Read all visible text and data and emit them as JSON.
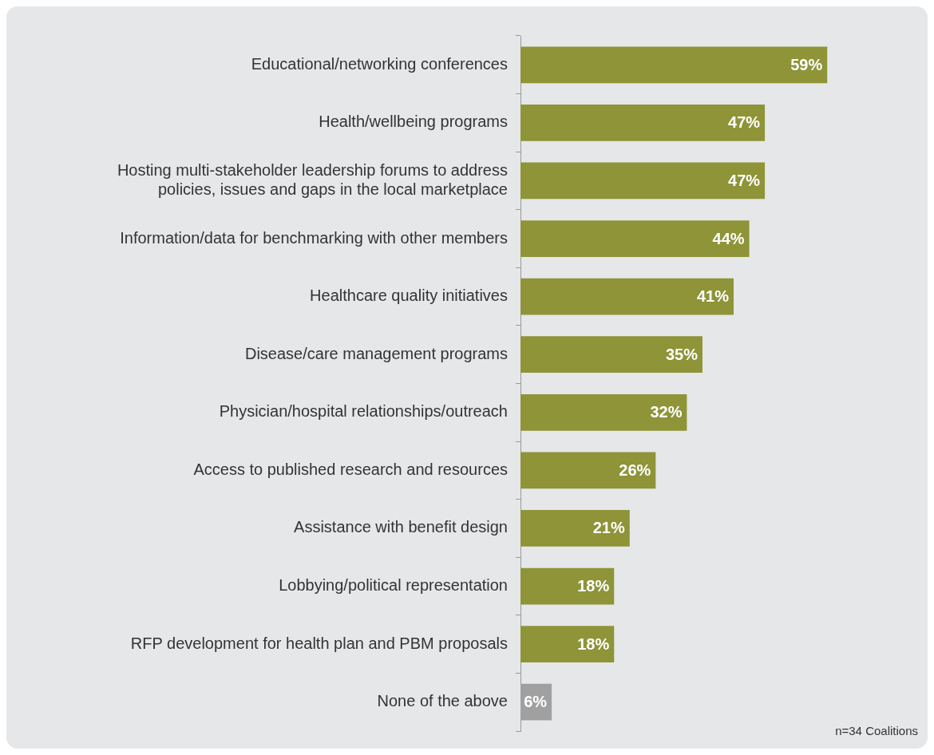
{
  "chart_data": {
    "type": "bar",
    "orientation": "horizontal",
    "categories": [
      "Educational/networking conferences",
      "Health/wellbeing programs",
      "Hosting multi-stakeholder leadership forums to address\npolicies, issues and gaps in the local marketplace",
      "Information/data for benchmarking with other members",
      "Healthcare quality initiatives",
      "Disease/care management programs",
      "Physician/hospital relationships/outreach",
      "Access to published research and resources",
      "Assistance with benefit design",
      "Lobbying/political representation",
      "RFP development for health plan and PBM proposals",
      "None of the above"
    ],
    "values": [
      59,
      47,
      47,
      44,
      41,
      35,
      32,
      26,
      21,
      18,
      18,
      6
    ],
    "colors": [
      "#8e9437",
      "#8e9437",
      "#8e9437",
      "#8e9437",
      "#8e9437",
      "#8e9437",
      "#8e9437",
      "#8e9437",
      "#8e9437",
      "#8e9437",
      "#8e9437",
      "#a0a0a0"
    ],
    "value_labels": [
      "59%",
      "47%",
      "47%",
      "44%",
      "41%",
      "35%",
      "32%",
      "26%",
      "21%",
      "18%",
      "18%",
      "6%"
    ],
    "xlim": [
      0,
      78
    ],
    "tick_labels": "y",
    "legend": false,
    "annotations": [
      "n=34 Coalitions"
    ]
  }
}
